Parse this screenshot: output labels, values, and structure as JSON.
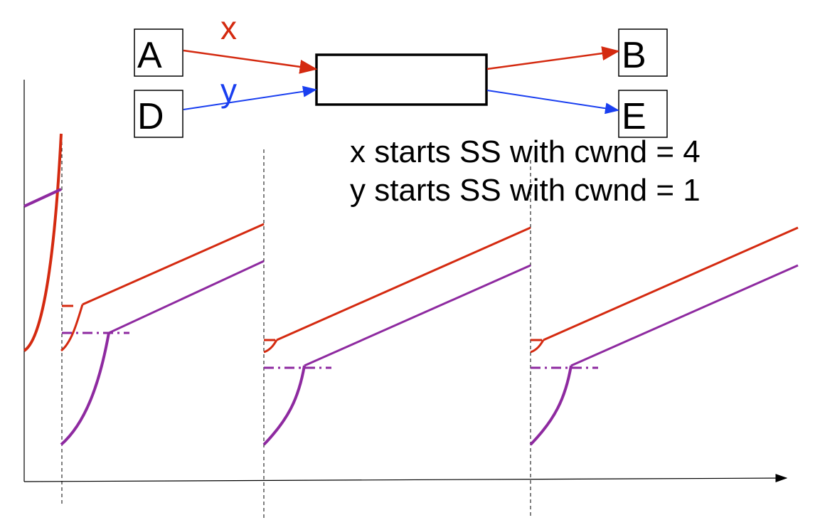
{
  "topology": {
    "nodes": [
      {
        "id": "A",
        "label": "A"
      },
      {
        "id": "D",
        "label": "D"
      },
      {
        "id": "router",
        "label": ""
      },
      {
        "id": "B",
        "label": "B"
      },
      {
        "id": "E",
        "label": "E"
      }
    ],
    "flows": [
      {
        "label": "x",
        "color": "#d42a10",
        "from": "A",
        "to": "B"
      },
      {
        "label": "y",
        "color": "#1a3ff0",
        "from": "D",
        "to": "E"
      }
    ]
  },
  "annotations": [
    "x starts SS with cwnd = 4",
    "y starts SS with cwnd = 1"
  ],
  "colors": {
    "flow_x_curve": "#d42a10",
    "flow_y_curve": "#8e2aa0",
    "axes": "#000000",
    "guides": "#000000"
  }
}
